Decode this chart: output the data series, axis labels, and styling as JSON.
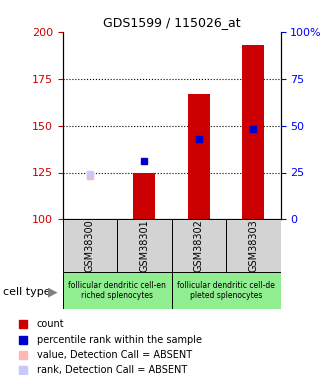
{
  "title": "GDS1599 / 115026_at",
  "samples": [
    "GSM38300",
    "GSM38301",
    "GSM38302",
    "GSM38303"
  ],
  "ylim_left": [
    100,
    200
  ],
  "ylim_right": [
    0,
    100
  ],
  "yticks_left": [
    100,
    125,
    150,
    175,
    200
  ],
  "yticks_right": [
    0,
    25,
    50,
    75,
    100
  ],
  "ytick_labels_right": [
    "0",
    "25",
    "50",
    "75",
    "100%"
  ],
  "red_bars_base": 100,
  "red_bar_tops": [
    100,
    125,
    167,
    193
  ],
  "blue_squares_y": [
    null,
    131,
    143,
    148
  ],
  "pink_squares_y": [
    123,
    null,
    null,
    null
  ],
  "lavender_squares_y": [
    124,
    null,
    null,
    null
  ],
  "cell_type_groups": [
    {
      "label": "follicular dendritic cell-en\nriched splenocytes",
      "samples": [
        0,
        1
      ],
      "color": "#90EE90"
    },
    {
      "label": "follicular dendritic cell-de\npleted splenocytes",
      "samples": [
        2,
        3
      ],
      "color": "#90EE90"
    }
  ],
  "legend_items": [
    {
      "color": "#CC0000",
      "label": "count"
    },
    {
      "color": "#0000CC",
      "label": "percentile rank within the sample"
    },
    {
      "color": "#FFB6B6",
      "label": "value, Detection Call = ABSENT"
    },
    {
      "color": "#C8C8FF",
      "label": "rank, Detection Call = ABSENT"
    }
  ],
  "bar_color": "#CC0000",
  "blue_color": "#0000CC",
  "pink_color": "#FFB6B6",
  "lavender_color": "#C8C8FF",
  "bar_width": 0.4,
  "left_axis_color": "#CC0000",
  "right_axis_color": "#0000FF",
  "sample_box_color": "#D3D3D3",
  "cell_type_label": "cell type"
}
